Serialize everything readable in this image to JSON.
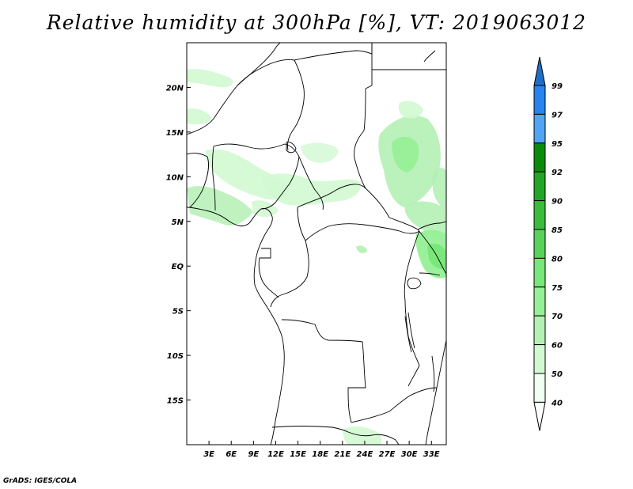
{
  "title": "Relative humidity at 300hPa [%], VT: 2019063012",
  "credit": "GrADS: IGES/COLA",
  "map": {
    "lat_labels": [
      "20N",
      "15N",
      "10N",
      "5N",
      "EQ",
      "5S",
      "10S",
      "15S"
    ],
    "lat_values": [
      20,
      15,
      10,
      5,
      0,
      -5,
      -10,
      -15
    ],
    "lon_labels": [
      "3E",
      "6E",
      "9E",
      "12E",
      "15E",
      "18E",
      "21E",
      "24E",
      "27E",
      "30E",
      "33E"
    ],
    "lon_values": [
      3,
      6,
      9,
      12,
      15,
      18,
      21,
      24,
      27,
      30,
      33
    ],
    "lon_range": [
      0,
      35
    ],
    "lat_range": [
      -20,
      25
    ]
  },
  "colorbar": {
    "levels": [
      "99",
      "97",
      "95",
      "92",
      "90",
      "85",
      "80",
      "75",
      "70",
      "60",
      "50",
      "40"
    ],
    "colors": [
      "#1e6ec8",
      "#2882f0",
      "#50a5f5",
      "#0a8c0a",
      "#25a525",
      "#3cbc3c",
      "#5ad25a",
      "#78e678",
      "#96f096",
      "#b4f0b4",
      "#d2f8d2",
      "#f0fff0",
      "#ffffff"
    ]
  }
}
